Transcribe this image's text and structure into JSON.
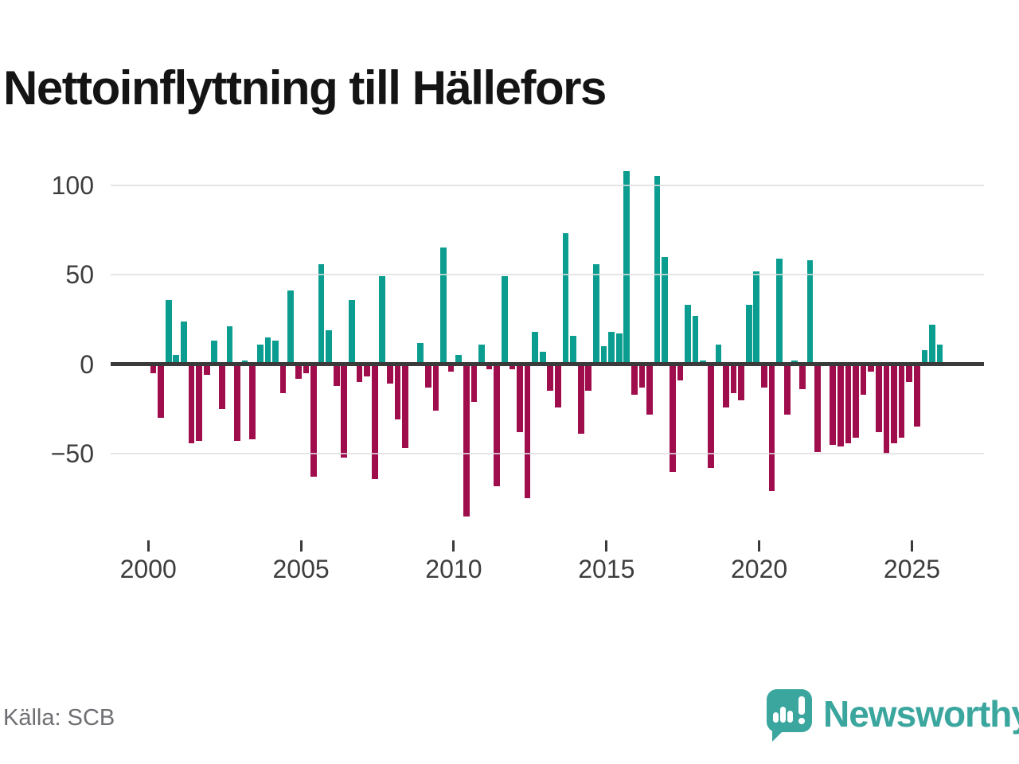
{
  "title": "Nettoinflyttning till Hällefors",
  "source": "Källa: SCB",
  "brand": {
    "name": "Newsworthy",
    "color": "#3ba69e"
  },
  "colors": {
    "positive_bar": "#0b9d8f",
    "negative_bar": "#a00d4d",
    "axis": "#3a3a3a",
    "gridline": "#e3e3e3",
    "tick_label": "#3d3d3d",
    "title_text": "#141414",
    "source_text": "#6e6e73"
  },
  "chart_data": {
    "type": "bar",
    "title": "Nettoinflyttning till Hällefors",
    "frequency": "quarterly",
    "start": "2000-Q1",
    "end": "2025-Q4",
    "xlabel": "",
    "ylabel": "",
    "ylim": [
      -90,
      115
    ],
    "grid": true,
    "legend": false,
    "y_ticks": [
      100,
      50,
      0,
      -50
    ],
    "y_tick_labels": [
      "100",
      "50",
      "0",
      "−50"
    ],
    "x_tick_years": [
      2000,
      2005,
      2010,
      2015,
      2020,
      2025
    ],
    "x_tick_labels": [
      "2000",
      "2005",
      "2010",
      "2015",
      "2020",
      "2025"
    ],
    "series_name": "Nettoinflyttning",
    "years": [
      {
        "year": 2000,
        "values": [
          -5,
          -30,
          36,
          5
        ]
      },
      {
        "year": 2001,
        "values": [
          24,
          -44,
          -43,
          -6
        ]
      },
      {
        "year": 2002,
        "values": [
          13,
          -25,
          21,
          -43
        ]
      },
      {
        "year": 2003,
        "values": [
          2,
          -42,
          11,
          15
        ]
      },
      {
        "year": 2004,
        "values": [
          13,
          -16,
          41,
          -8
        ]
      },
      {
        "year": 2005,
        "values": [
          -5,
          -63,
          56,
          19
        ]
      },
      {
        "year": 2006,
        "values": [
          -12,
          -52,
          36,
          -10
        ]
      },
      {
        "year": 2007,
        "values": [
          -7,
          -64,
          49,
          -11
        ]
      },
      {
        "year": 2008,
        "values": [
          -31,
          -47,
          0,
          12
        ]
      },
      {
        "year": 2009,
        "values": [
          -13,
          -26,
          65,
          -4
        ]
      },
      {
        "year": 2010,
        "values": [
          5,
          -85,
          -21,
          11
        ]
      },
      {
        "year": 2011,
        "values": [
          -3,
          -68,
          49,
          -3
        ]
      },
      {
        "year": 2012,
        "values": [
          -38,
          -75,
          18,
          7
        ]
      },
      {
        "year": 2013,
        "values": [
          -15,
          -24,
          73,
          16
        ]
      },
      {
        "year": 2014,
        "values": [
          -39,
          -15,
          56,
          10
        ]
      },
      {
        "year": 2015,
        "values": [
          18,
          17,
          108,
          -17
        ]
      },
      {
        "year": 2016,
        "values": [
          -13,
          -28,
          105,
          60
        ]
      },
      {
        "year": 2017,
        "values": [
          -60,
          -9,
          33,
          27
        ]
      },
      {
        "year": 2018,
        "values": [
          2,
          -58,
          11,
          -24
        ]
      },
      {
        "year": 2019,
        "values": [
          -16,
          -20,
          33,
          52
        ]
      },
      {
        "year": 2020,
        "values": [
          -13,
          -71,
          59,
          -28
        ]
      },
      {
        "year": 2021,
        "values": [
          2,
          -14,
          58,
          -49
        ]
      },
      {
        "year": 2022,
        "values": [
          0,
          -45,
          -46,
          -44
        ]
      },
      {
        "year": 2023,
        "values": [
          -41,
          -17,
          -4,
          -38
        ]
      },
      {
        "year": 2024,
        "values": [
          -50,
          -44,
          -41,
          -10
        ]
      },
      {
        "year": 2025,
        "values": [
          -35,
          8,
          22,
          11
        ]
      }
    ]
  }
}
